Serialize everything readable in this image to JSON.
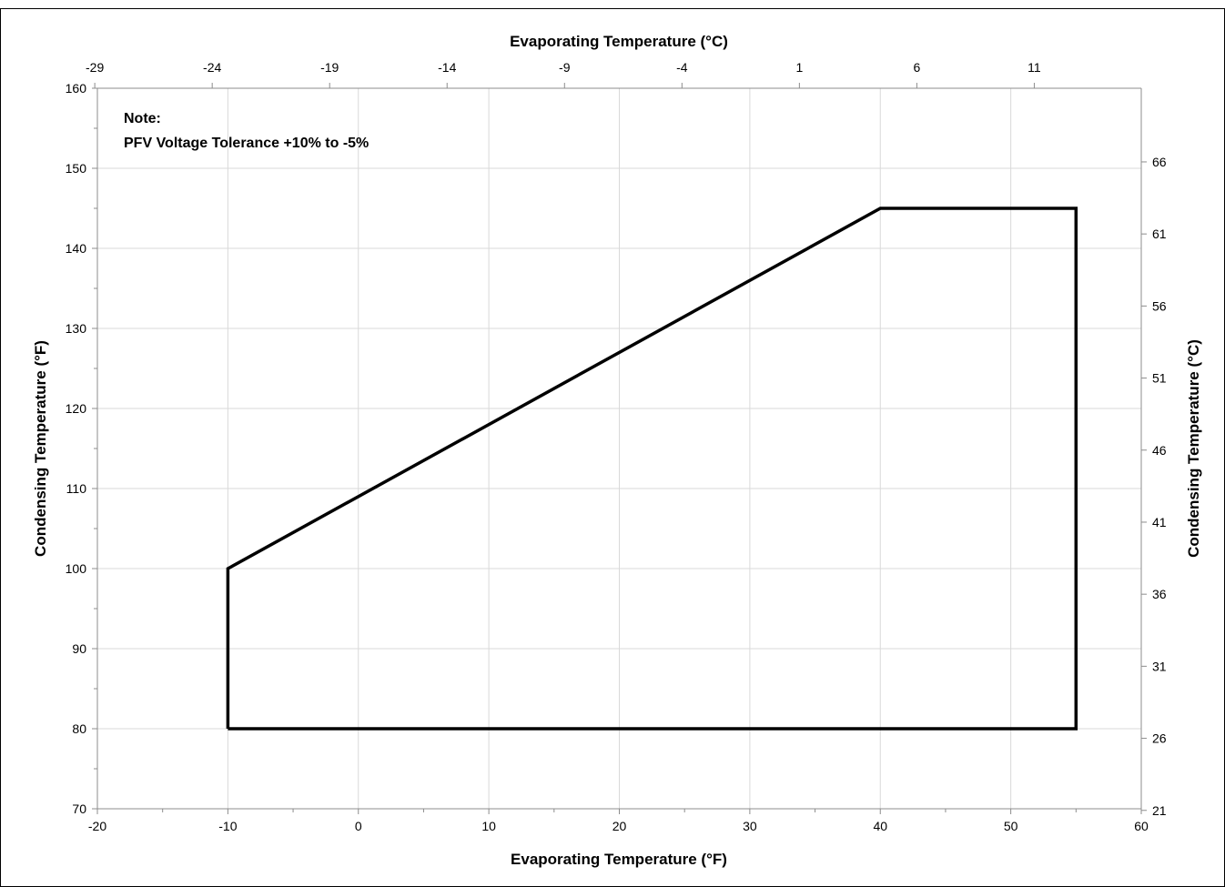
{
  "chart_data": {
    "type": "line",
    "title": "",
    "xlabel": "Evaporating Temperature (°F)",
    "ylabel": "Condensing Temperature (°F)",
    "x2label": "Evaporating Temperature (°C)",
    "y2label": "Condensing Temperature (°C)",
    "xlim": [
      -20,
      60
    ],
    "ylim": [
      70,
      160
    ],
    "grid": true,
    "x_ticks": [
      "-20",
      "-10",
      "0",
      "10",
      "20",
      "30",
      "40",
      "50",
      "60"
    ],
    "y_ticks": [
      "70",
      "80",
      "90",
      "100",
      "110",
      "120",
      "130",
      "140",
      "150",
      "160"
    ],
    "x2_ticks": [
      {
        "label": "-29",
        "value_f": -20.2
      },
      {
        "label": "-24",
        "value_f": -11.2
      },
      {
        "label": "-19",
        "value_f": -2.2
      },
      {
        "label": "-14",
        "value_f": 6.8
      },
      {
        "label": "-9",
        "value_f": 15.8
      },
      {
        "label": "-4",
        "value_f": 24.8
      },
      {
        "label": "1",
        "value_f": 33.8
      },
      {
        "label": "6",
        "value_f": 42.8
      },
      {
        "label": "11",
        "value_f": 51.8
      }
    ],
    "y2_ticks": [
      {
        "label": "21",
        "value_f": 69.8
      },
      {
        "label": "26",
        "value_f": 78.8
      },
      {
        "label": "31",
        "value_f": 87.8
      },
      {
        "label": "36",
        "value_f": 96.8
      },
      {
        "label": "41",
        "value_f": 105.8
      },
      {
        "label": "46",
        "value_f": 114.8
      },
      {
        "label": "51",
        "value_f": 123.8
      },
      {
        "label": "56",
        "value_f": 132.8
      },
      {
        "label": "61",
        "value_f": 141.8
      },
      {
        "label": "66",
        "value_f": 150.8
      }
    ],
    "series": [
      {
        "points": [
          {
            "x": -10,
            "y": 80
          },
          {
            "x": -10,
            "y": 100
          },
          {
            "x": 40,
            "y": 145
          },
          {
            "x": 55,
            "y": 145
          },
          {
            "x": 55,
            "y": 80
          },
          {
            "x": -10,
            "y": 80
          }
        ]
      }
    ],
    "annotations": {
      "note_title": "Note:",
      "note_text": "PFV Voltage Tolerance +10% to -5%"
    }
  }
}
